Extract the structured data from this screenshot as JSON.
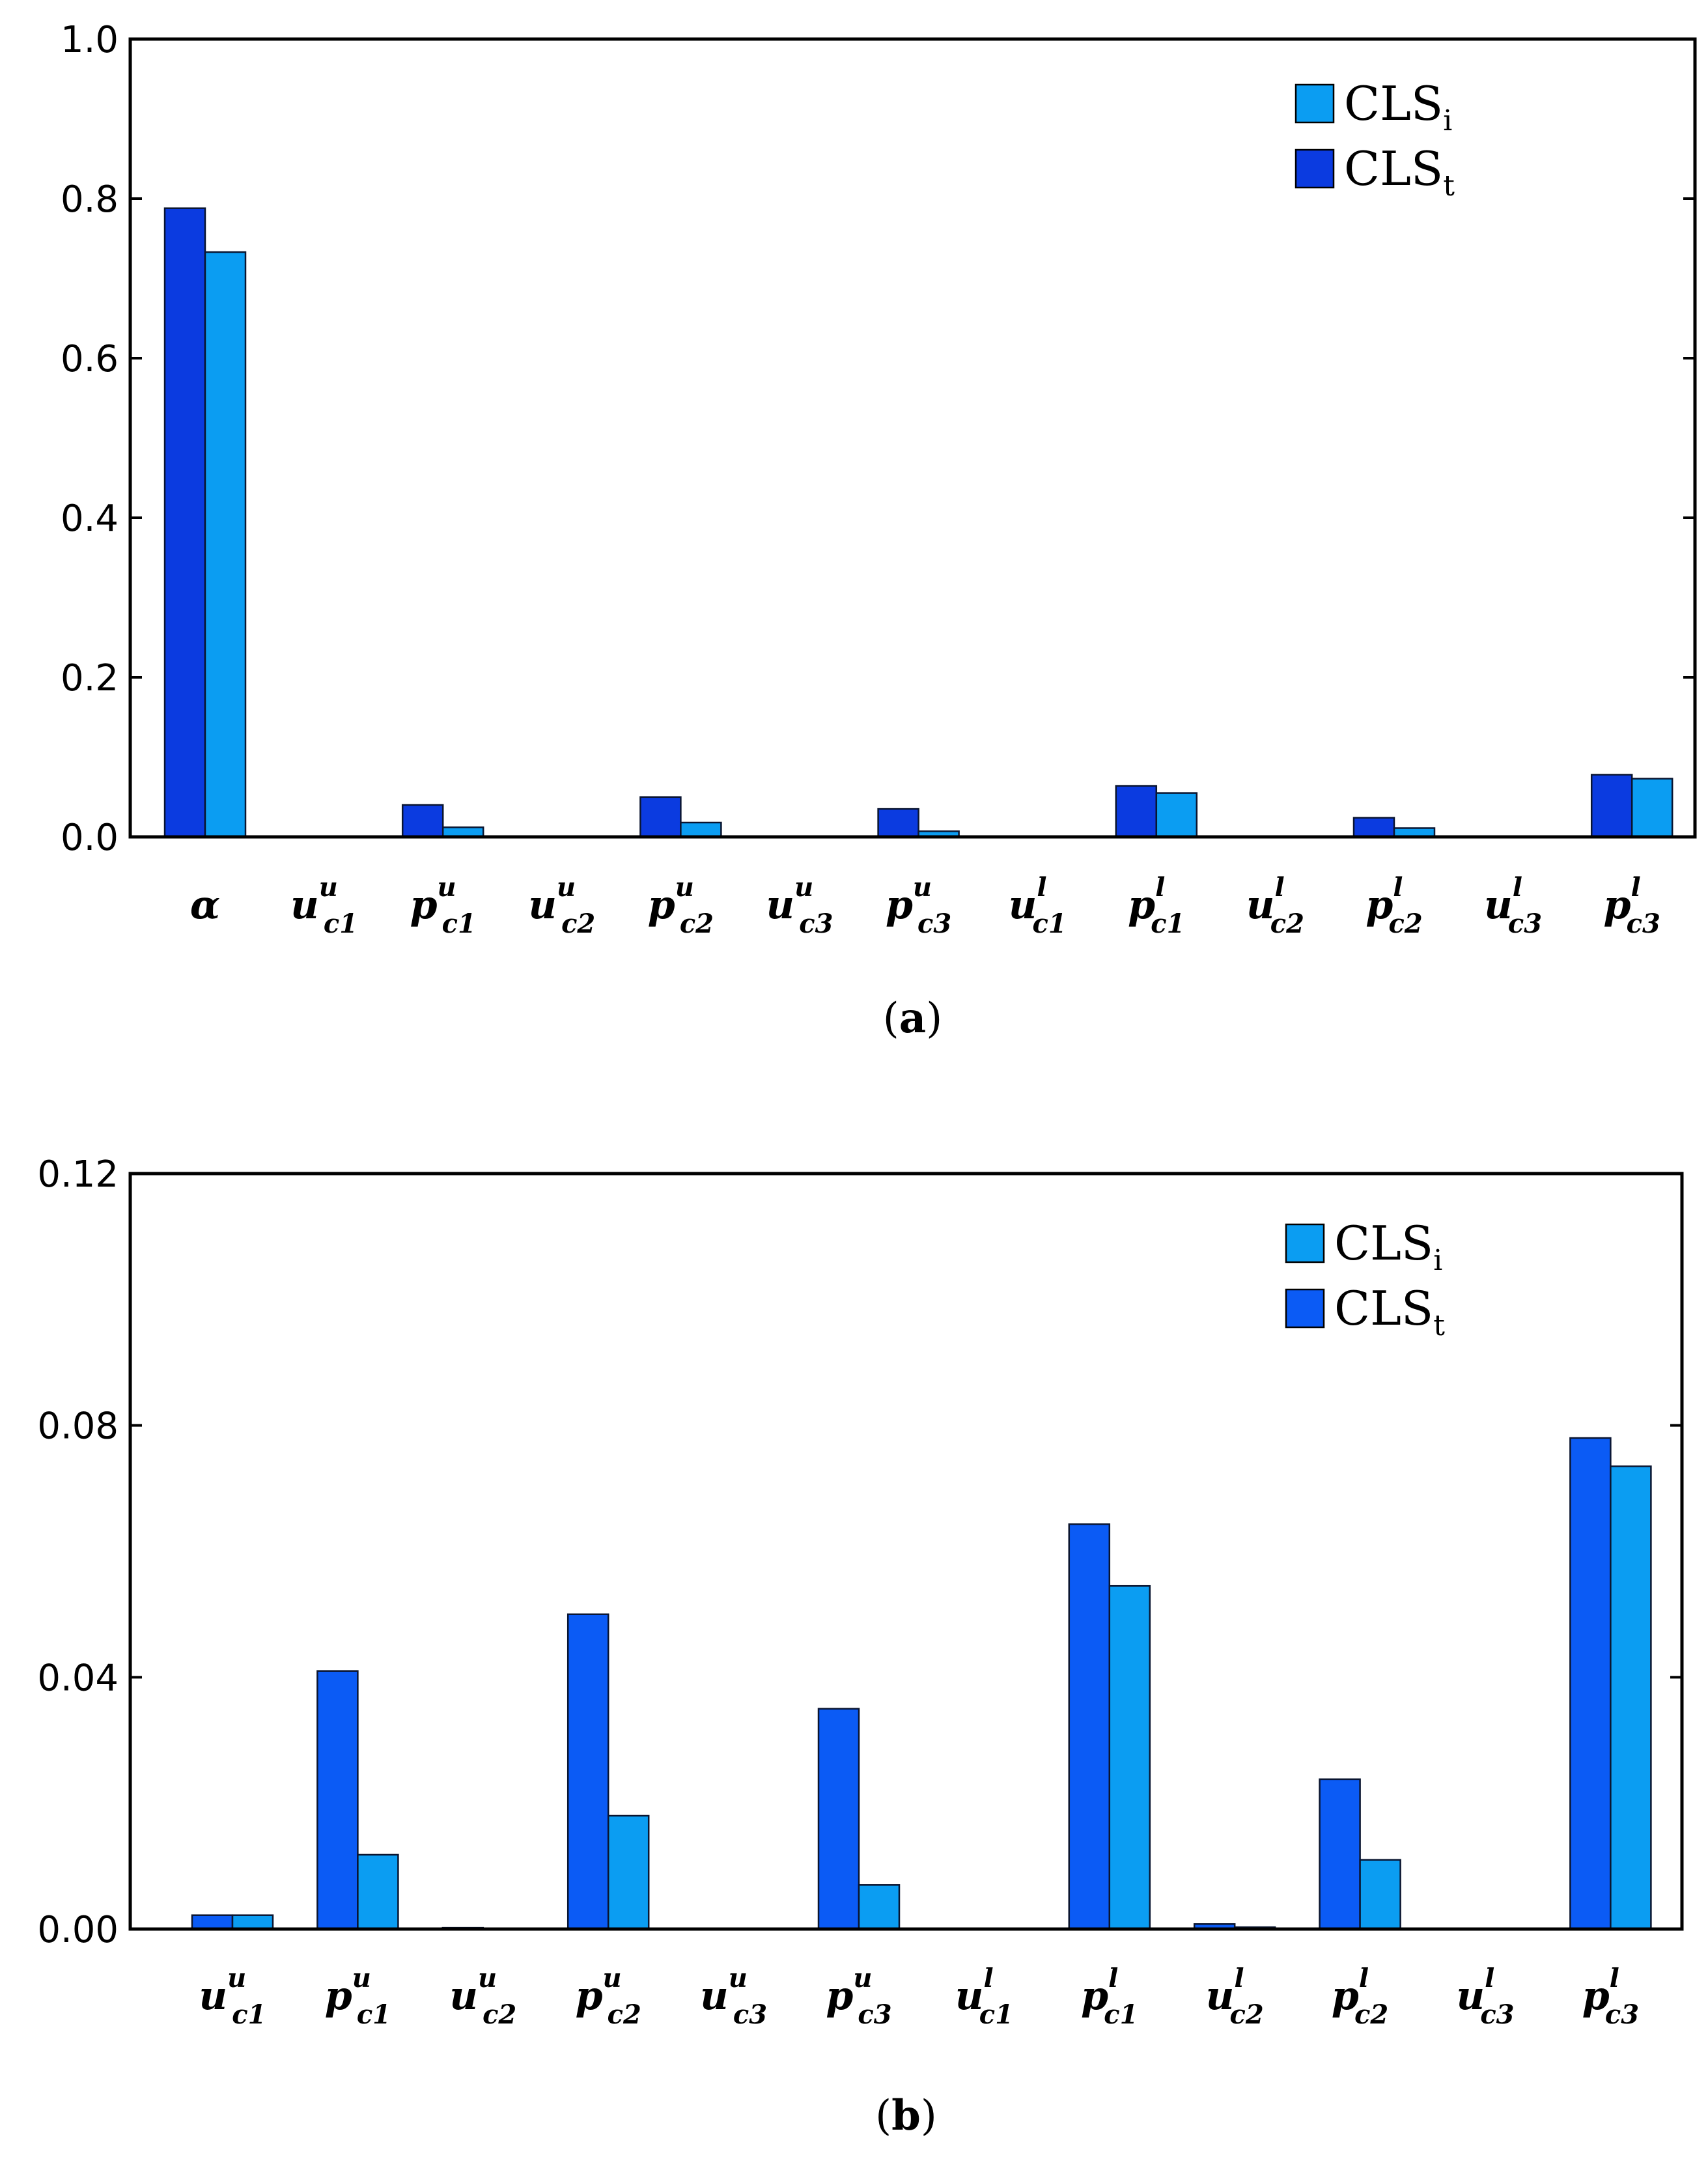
{
  "chart_data": [
    {
      "type": "bar",
      "panel": "a",
      "caption_letter": "a",
      "categories": [
        {
          "base": "α"
        },
        {
          "base": "u",
          "sup": "u",
          "sub": "c1"
        },
        {
          "base": "p",
          "sup": "u",
          "sub": "c1"
        },
        {
          "base": "u",
          "sup": "u",
          "sub": "c2"
        },
        {
          "base": "p",
          "sup": "u",
          "sub": "c2"
        },
        {
          "base": "u",
          "sup": "u",
          "sub": "c3"
        },
        {
          "base": "p",
          "sup": "u",
          "sub": "c3"
        },
        {
          "base": "u",
          "sup": "l",
          "sub": "c1"
        },
        {
          "base": "p",
          "sup": "l",
          "sub": "c1"
        },
        {
          "base": "u",
          "sup": "l",
          "sub": "c2"
        },
        {
          "base": "p",
          "sup": "l",
          "sub": "c2"
        },
        {
          "base": "u",
          "sup": "l",
          "sub": "c3"
        },
        {
          "base": "p",
          "sup": "l",
          "sub": "c3"
        }
      ],
      "series": [
        {
          "name": "CLS_t",
          "label_main": "CLS",
          "label_sub": "t",
          "color": "#0B3BE0",
          "values": [
            0.788,
            0.0,
            0.04,
            0.0,
            0.05,
            0.0,
            0.035,
            0.0,
            0.064,
            0.0,
            0.024,
            0.0,
            0.078
          ]
        },
        {
          "name": "CLS_i",
          "label_main": "CLS",
          "label_sub": "i",
          "color": "#0B9DF2",
          "values": [
            0.733,
            0.0,
            0.012,
            0.0,
            0.018,
            0.0,
            0.007,
            0.0,
            0.055,
            0.0,
            0.011,
            0.0,
            0.073
          ]
        }
      ],
      "legend_order": [
        "CLS_i",
        "CLS_t"
      ],
      "yticks": [
        "0.0",
        "0.2",
        "0.4",
        "0.6",
        "0.8",
        "1.0"
      ],
      "ytick_values": [
        0.0,
        0.2,
        0.4,
        0.6,
        0.8,
        1.0
      ],
      "ylim": [
        0,
        1.0
      ],
      "legend_position": "top-right",
      "grid": false
    },
    {
      "type": "bar",
      "panel": "b",
      "caption_letter": "b",
      "categories": [
        {
          "base": "u",
          "sup": "u",
          "sub": "c1"
        },
        {
          "base": "p",
          "sup": "u",
          "sub": "c1"
        },
        {
          "base": "u",
          "sup": "u",
          "sub": "c2"
        },
        {
          "base": "p",
          "sup": "u",
          "sub": "c2"
        },
        {
          "base": "u",
          "sup": "u",
          "sub": "c3"
        },
        {
          "base": "p",
          "sup": "u",
          "sub": "c3"
        },
        {
          "base": "u",
          "sup": "l",
          "sub": "c1"
        },
        {
          "base": "p",
          "sup": "l",
          "sub": "c1"
        },
        {
          "base": "u",
          "sup": "l",
          "sub": "c2"
        },
        {
          "base": "p",
          "sup": "l",
          "sub": "c2"
        },
        {
          "base": "u",
          "sup": "l",
          "sub": "c3"
        },
        {
          "base": "p",
          "sup": "l",
          "sub": "c3"
        }
      ],
      "series": [
        {
          "name": "CLS_t",
          "label_main": "CLS",
          "label_sub": "t",
          "color": "#0B5BF5",
          "values": [
            0.0022,
            0.041,
            0.0002,
            0.05,
            0.0,
            0.035,
            0.0,
            0.0643,
            0.0008,
            0.0238,
            0.0,
            0.078
          ]
        },
        {
          "name": "CLS_i",
          "label_main": "CLS",
          "label_sub": "i",
          "color": "#0B9DF2",
          "values": [
            0.0022,
            0.0118,
            0.0001,
            0.018,
            0.0,
            0.007,
            0.0,
            0.0545,
            0.0003,
            0.011,
            0.0,
            0.0735
          ]
        }
      ],
      "legend_order": [
        "CLS_i",
        "CLS_t"
      ],
      "yticks": [
        "0.00",
        "0.04",
        "0.08",
        "0.12"
      ],
      "ytick_values": [
        0.0,
        0.04,
        0.08,
        0.12
      ],
      "ylim": [
        0,
        0.12
      ],
      "legend_position": "top-right",
      "grid": false
    }
  ]
}
